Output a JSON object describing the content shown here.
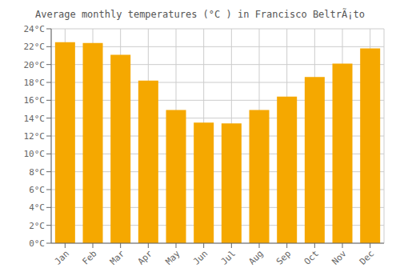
{
  "chart_data": {
    "type": "bar",
    "title": "Average monthly temperatures (°C ) in Francisco BeltrÃ¡to",
    "categories": [
      "Jan",
      "Feb",
      "Mar",
      "Apr",
      "May",
      "Jun",
      "Jul",
      "Aug",
      "Sep",
      "Oct",
      "Nov",
      "Dec"
    ],
    "values": [
      22.5,
      22.4,
      21.1,
      18.2,
      14.9,
      13.5,
      13.4,
      14.9,
      16.4,
      18.6,
      20.1,
      21.8
    ],
    "color": "#F5A800",
    "ylim": [
      0,
      24
    ],
    "yticks": [
      {
        "value": 0,
        "label": "0°C"
      },
      {
        "value": 2,
        "label": "2°C"
      },
      {
        "value": 4,
        "label": "4°C"
      },
      {
        "value": 6,
        "label": "6°C"
      },
      {
        "value": 8,
        "label": "8°C"
      },
      {
        "value": 10,
        "label": "10°C"
      },
      {
        "value": 12,
        "label": "12°C"
      },
      {
        "value": 14,
        "label": "14°C"
      },
      {
        "value": 16,
        "label": "16°C"
      },
      {
        "value": 18,
        "label": "18°C"
      },
      {
        "value": 20,
        "label": "20°C"
      },
      {
        "value": 22,
        "label": "22°C"
      },
      {
        "value": 24,
        "label": "24°C"
      }
    ],
    "grid": true
  }
}
